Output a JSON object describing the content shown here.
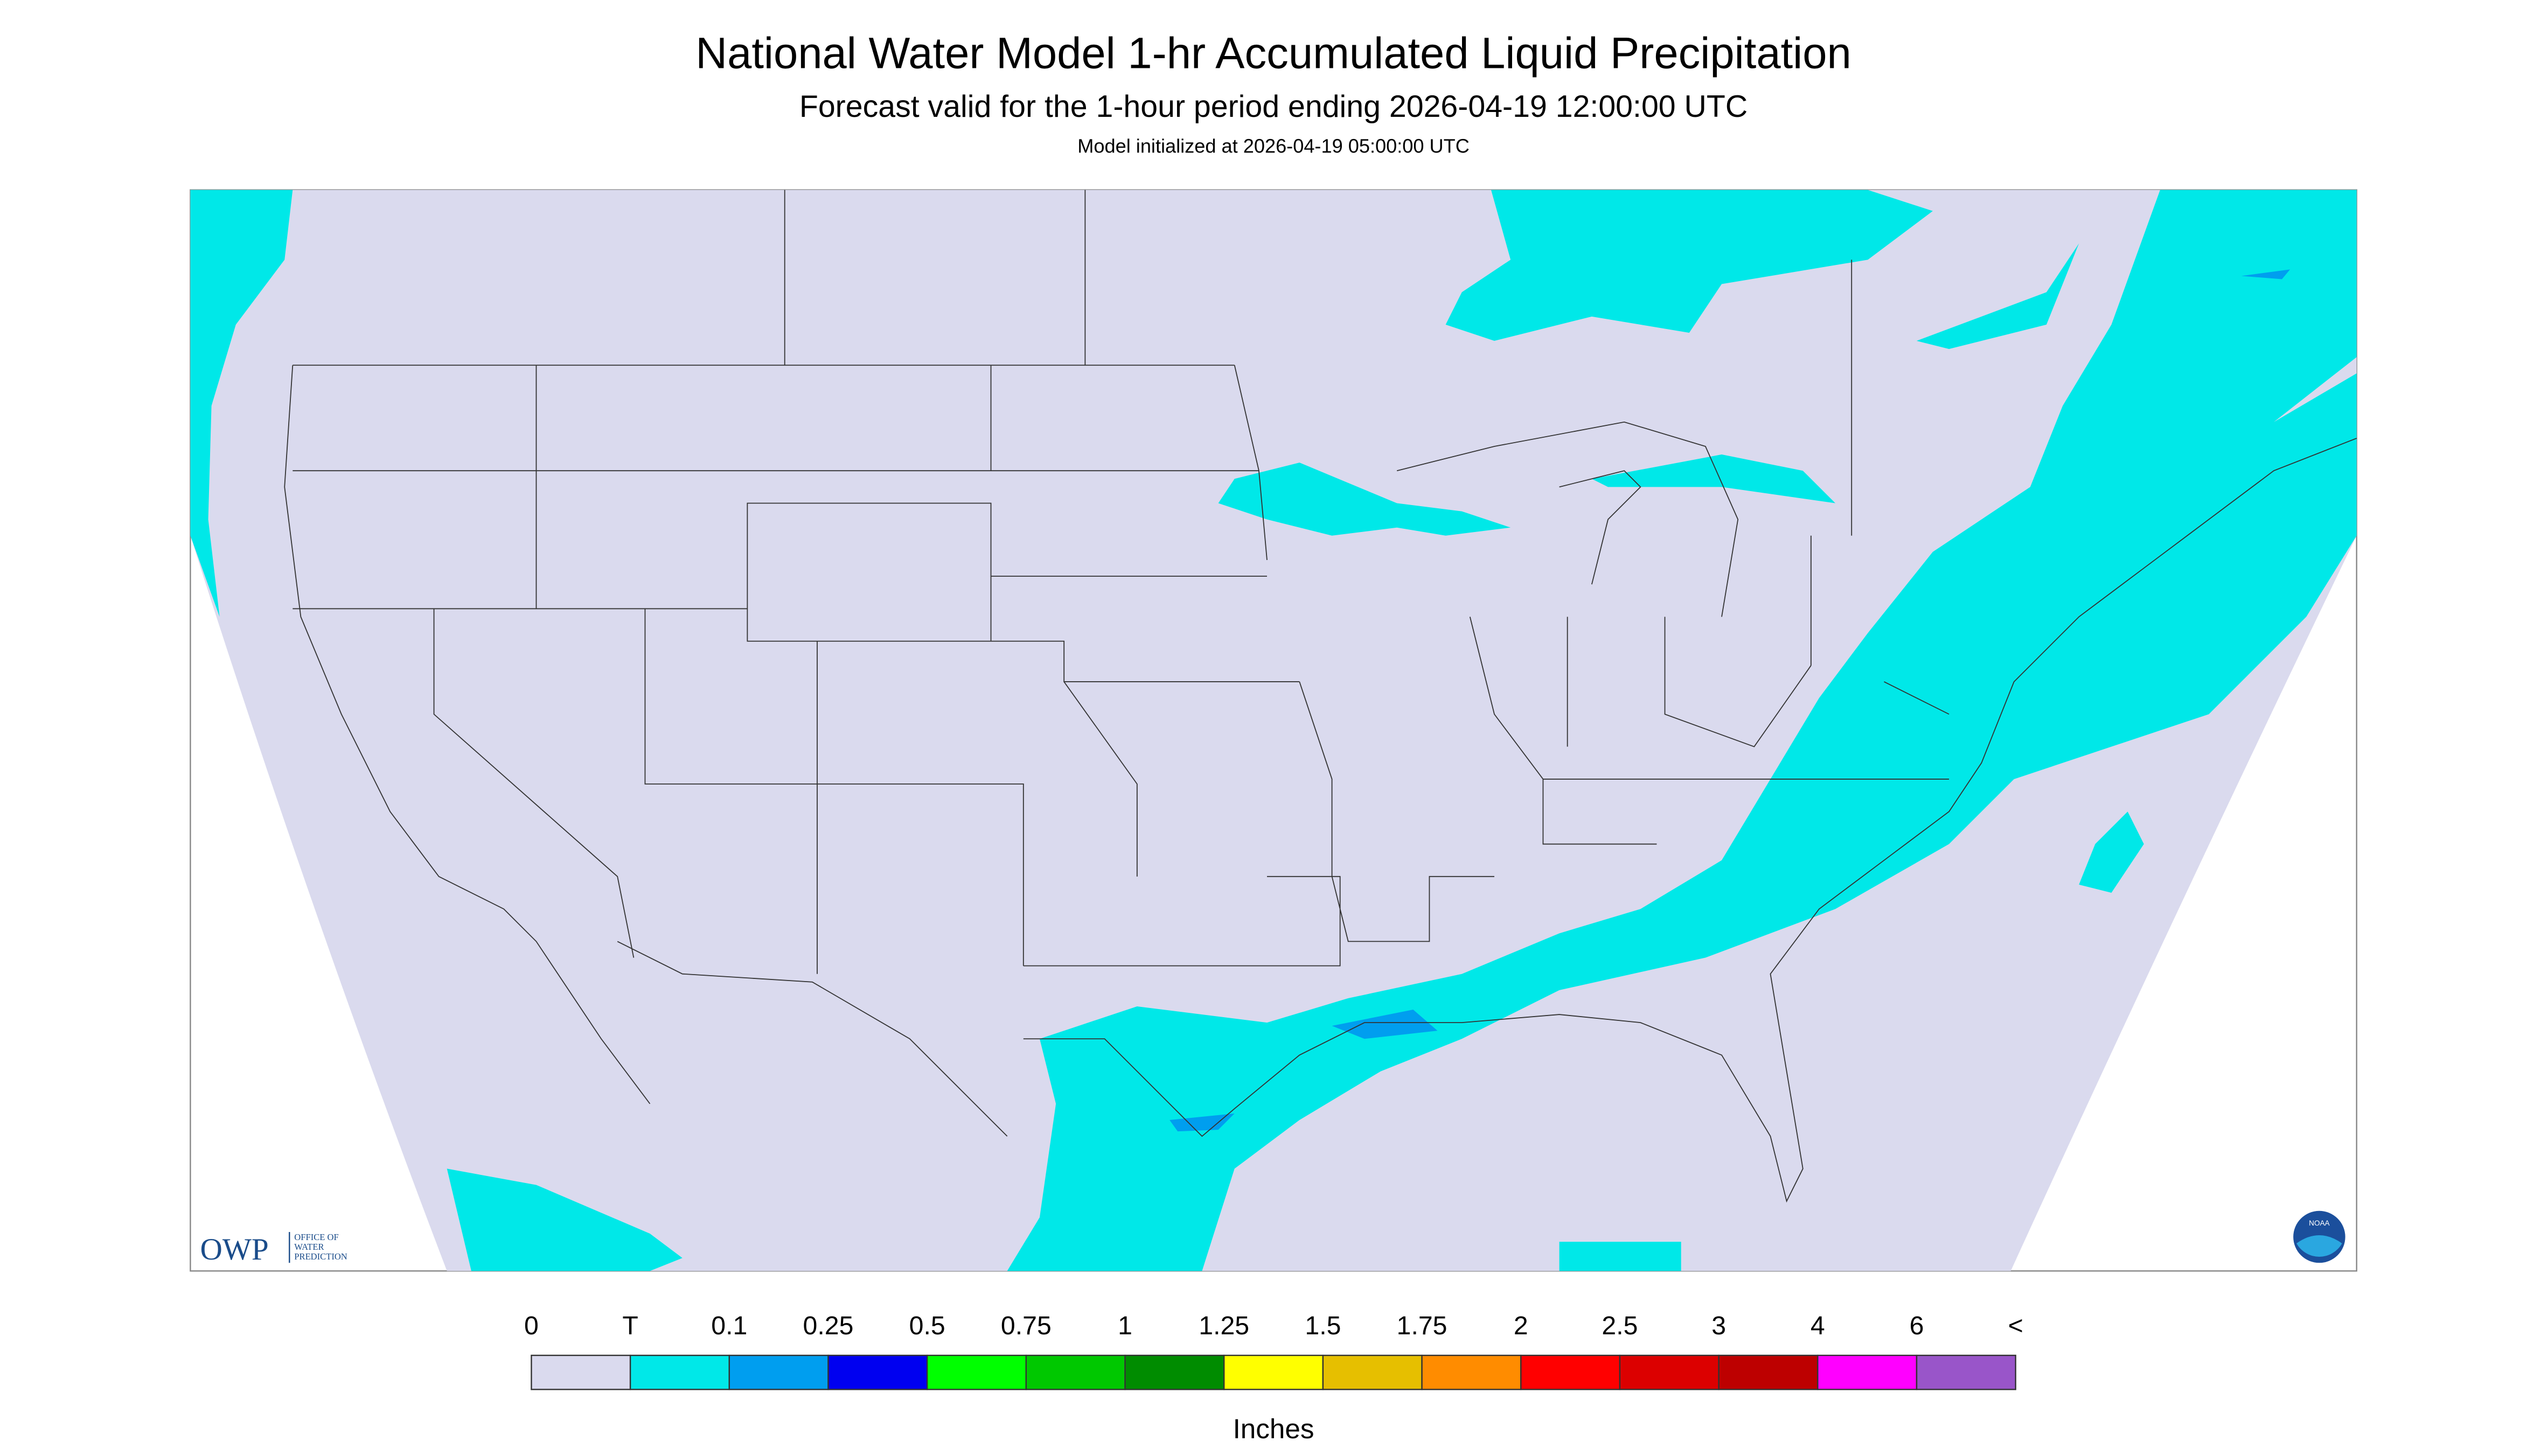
{
  "header": {
    "title": "National Water Model 1-hr Accumulated Liquid Precipitation",
    "subtitle": "Forecast valid for the 1-hour period ending 2026-04-19 12:00:00 UTC",
    "initialized": "Model initialized at 2026-04-19 05:00:00 UTC"
  },
  "legend": {
    "labels": [
      "0",
      "T",
      "0.1",
      "0.25",
      "0.5",
      "0.75",
      "1",
      "1.25",
      "1.5",
      "1.75",
      "2",
      "2.5",
      "3",
      "4",
      "6",
      "<"
    ],
    "colors": [
      "#dadaee",
      "#00e8e8",
      "#009eef",
      "#0000f0",
      "#00ff00",
      "#00c800",
      "#008c00",
      "#ffff00",
      "#e6bf00",
      "#ff8c00",
      "#ff0000",
      "#dc0000",
      "#bd0000",
      "#ff00ff",
      "#9955c9"
    ],
    "unit": "Inches"
  },
  "logos": {
    "owp": "OWP",
    "owp_name": [
      "OFFICE OF",
      "WATER",
      "PREDICTION"
    ],
    "noaa": "NOAA"
  }
}
